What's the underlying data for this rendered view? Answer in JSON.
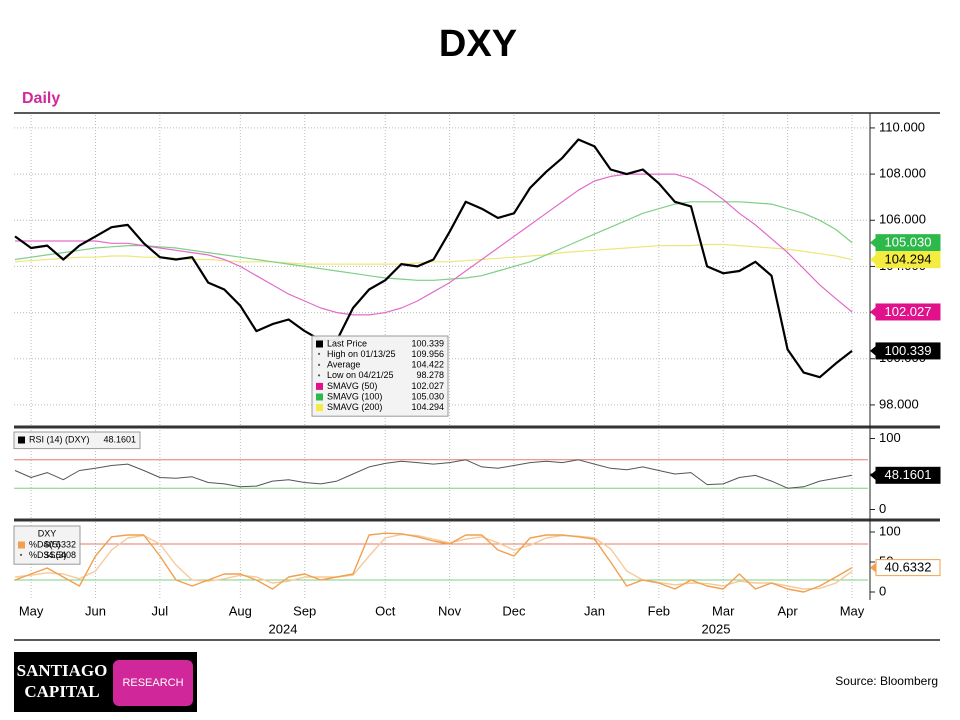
{
  "title": "DXY",
  "subtitle": "Daily",
  "source": "Source: Bloomberg",
  "logo": {
    "line1": "SANTIAGO",
    "line2": "CAPITAL",
    "badge": "RESEARCH"
  },
  "chart_data": [
    {
      "type": "line",
      "ylim": [
        97.13,
        110.56
      ],
      "yticks": [
        {
          "value": 98,
          "label": "98.000"
        },
        {
          "value": 100,
          "label": "100.000"
        },
        {
          "value": 102,
          "label": "102.000"
        },
        {
          "value": 104,
          "label": "104.000"
        },
        {
          "value": 106,
          "label": "106.000"
        },
        {
          "value": 108,
          "label": "108.000"
        },
        {
          "value": 110,
          "label": "110.000"
        }
      ],
      "grid": true,
      "stats": [
        {
          "name": "High on 01/13/25",
          "value": 109.956
        },
        {
          "name": "Average",
          "value": 104.422
        },
        {
          "name": "Low on 04/21/25",
          "value": 98.278
        }
      ],
      "series": [
        {
          "name": "Last Price",
          "color": "#000000",
          "width": 2.2,
          "tag_color": "#000000",
          "tag_text": "#ffffff",
          "values": [
            105.3,
            104.8,
            104.9,
            104.3,
            104.9,
            105.3,
            105.7,
            105.8,
            105.0,
            104.4,
            104.3,
            104.4,
            103.3,
            103.0,
            102.3,
            101.2,
            101.5,
            101.7,
            101.2,
            100.8,
            100.8,
            102.2,
            103.0,
            103.4,
            104.1,
            104.0,
            104.3,
            105.5,
            106.8,
            106.5,
            106.1,
            106.3,
            107.4,
            108.1,
            108.7,
            109.5,
            109.2,
            108.2,
            108.0,
            108.2,
            107.6,
            106.8,
            106.6,
            104.0,
            103.7,
            103.8,
            104.2,
            103.6,
            100.4,
            99.4,
            99.2,
            99.8,
            100.339
          ]
        },
        {
          "name": "SMAVG (50)",
          "color": "#e26cc8",
          "width": 1.2,
          "tag_color": "#e0118a",
          "tag_text": "#ffffff",
          "values": [
            105.1,
            105.1,
            105.1,
            105.1,
            105.1,
            105.1,
            105.0,
            105.0,
            104.9,
            104.8,
            104.7,
            104.6,
            104.5,
            104.3,
            104.0,
            103.6,
            103.2,
            102.8,
            102.5,
            102.2,
            102.0,
            101.9,
            101.9,
            102.0,
            102.2,
            102.5,
            102.9,
            103.3,
            103.8,
            104.3,
            104.8,
            105.3,
            105.8,
            106.3,
            106.8,
            107.3,
            107.7,
            107.9,
            108.0,
            108.0,
            108.0,
            108.0,
            107.8,
            107.4,
            106.9,
            106.3,
            105.8,
            105.2,
            104.6,
            103.9,
            103.2,
            102.6,
            102.027
          ]
        },
        {
          "name": "SMAVG (100)",
          "color": "#7fcf86",
          "width": 1.2,
          "tag_color": "#2db84b",
          "tag_text": "#ffffff",
          "tag_label": "105.030",
          "values": [
            104.3,
            104.4,
            104.5,
            104.6,
            104.7,
            104.8,
            104.85,
            104.9,
            104.9,
            104.85,
            104.8,
            104.7,
            104.6,
            104.5,
            104.4,
            104.3,
            104.2,
            104.1,
            104.0,
            103.9,
            103.8,
            103.7,
            103.6,
            103.5,
            103.45,
            103.4,
            103.4,
            103.45,
            103.5,
            103.6,
            103.8,
            104.0,
            104.2,
            104.5,
            104.8,
            105.1,
            105.4,
            105.7,
            106.0,
            106.3,
            106.5,
            106.7,
            106.8,
            106.8,
            106.8,
            106.8,
            106.75,
            106.7,
            106.5,
            106.3,
            106.0,
            105.6,
            105.03
          ]
        },
        {
          "name": "SMAVG (200)",
          "color": "#ece77a",
          "width": 1.2,
          "tag_color": "#f5ec42",
          "tag_text": "#000000",
          "values": [
            104.2,
            104.25,
            104.3,
            104.35,
            104.4,
            104.4,
            104.45,
            104.45,
            104.4,
            104.4,
            104.35,
            104.3,
            104.3,
            104.25,
            104.2,
            104.2,
            104.2,
            104.15,
            104.1,
            104.1,
            104.1,
            104.1,
            104.1,
            104.1,
            104.1,
            104.15,
            104.2,
            104.2,
            104.25,
            104.3,
            104.35,
            104.4,
            104.45,
            104.5,
            104.6,
            104.65,
            104.7,
            104.75,
            104.8,
            104.85,
            104.9,
            104.9,
            104.9,
            104.95,
            104.95,
            104.9,
            104.85,
            104.8,
            104.75,
            104.65,
            104.55,
            104.45,
            104.294
          ]
        }
      ]
    },
    {
      "type": "line",
      "ylim": [
        -12,
        112
      ],
      "yticks": [
        0,
        50,
        100
      ],
      "levels": [
        {
          "value": 70,
          "color": "#e07a6a"
        },
        {
          "value": 30,
          "color": "#7cd07c"
        }
      ],
      "series": [
        {
          "name": "RSI (14) (DXY)",
          "color": "#555555",
          "width": 1,
          "tag_color": "#000000",
          "tag_text": "#ffffff",
          "values": [
            55,
            45,
            52,
            42,
            55,
            58,
            62,
            64,
            55,
            45,
            44,
            46,
            38,
            36,
            32,
            33,
            40,
            42,
            38,
            36,
            40,
            50,
            60,
            65,
            68,
            66,
            64,
            66,
            70,
            60,
            58,
            62,
            66,
            68,
            66,
            70,
            64,
            58,
            56,
            60,
            55,
            50,
            52,
            35,
            36,
            45,
            48,
            40,
            30,
            32,
            40,
            44,
            48.1601
          ]
        }
      ]
    },
    {
      "type": "line",
      "legend_title": "DXY",
      "ylim": [
        -10,
        116.7
      ],
      "yticks": [
        0,
        50,
        100
      ],
      "levels": [
        {
          "value": 80,
          "color": "#e07a6a"
        },
        {
          "value": 20,
          "color": "#7cd07c"
        }
      ],
      "categories": [
        null,
        "May",
        null,
        null,
        null,
        "Jun",
        null,
        null,
        null,
        "Jul",
        null,
        null,
        null,
        null,
        "Aug",
        null,
        null,
        null,
        "Sep",
        null,
        null,
        null,
        null,
        "Oct",
        null,
        null,
        null,
        "Nov",
        null,
        null,
        null,
        "Dec",
        null,
        null,
        null,
        null,
        "Jan",
        null,
        null,
        null,
        "Feb",
        null,
        null,
        null,
        "Mar",
        null,
        null,
        null,
        "Apr",
        null,
        null,
        null,
        "May"
      ],
      "years": [
        "2024",
        "2025"
      ],
      "series": [
        {
          "name": "%DS(5)",
          "color": "#f0a050",
          "width": 1.4,
          "tag_color": "#ffffff",
          "tag_text": "#000000",
          "values": [
            20,
            30,
            40,
            25,
            10,
            60,
            92,
            95,
            95,
            60,
            20,
            10,
            20,
            30,
            30,
            20,
            5,
            25,
            30,
            20,
            25,
            30,
            95,
            98,
            97,
            92,
            85,
            80,
            95,
            95,
            70,
            60,
            90,
            95,
            95,
            92,
            88,
            50,
            10,
            20,
            15,
            5,
            20,
            10,
            5,
            30,
            5,
            15,
            5,
            0,
            10,
            25,
            40.6332
          ]
        },
        {
          "name": "%DSS(3)",
          "color": "#f7c99a",
          "width": 1.4,
          "values": [
            25,
            28,
            32,
            30,
            22,
            35,
            70,
            90,
            94,
            80,
            45,
            20,
            18,
            22,
            28,
            25,
            15,
            18,
            25,
            25,
            25,
            28,
            60,
            90,
            96,
            94,
            88,
            82,
            88,
            92,
            82,
            70,
            78,
            90,
            94,
            93,
            90,
            72,
            35,
            20,
            16,
            12,
            15,
            14,
            10,
            18,
            15,
            15,
            10,
            5,
            6,
            15,
            34.5408
          ]
        }
      ]
    }
  ]
}
